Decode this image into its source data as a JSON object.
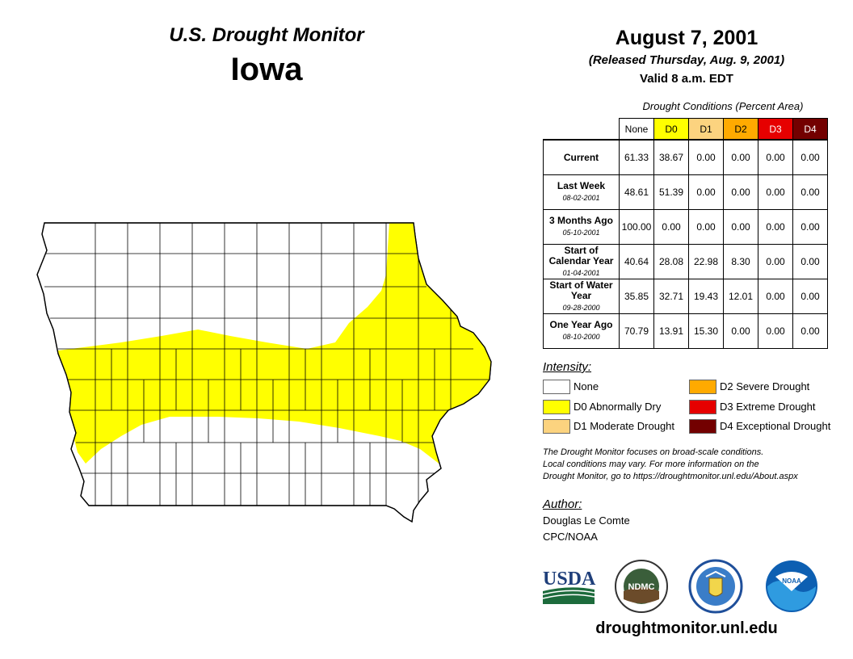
{
  "header": {
    "title": "U.S. Drought Monitor",
    "state": "Iowa",
    "date": "August 7, 2001",
    "released": "(Released Thursday, Aug. 9, 2001)",
    "valid": "Valid 8 a.m. EDT"
  },
  "table": {
    "caption": "Drought Conditions (Percent Area)",
    "columns": [
      {
        "label": "None",
        "color": "#ffffff",
        "text_color": "#000000"
      },
      {
        "label": "D0",
        "color": "#ffff00",
        "text_color": "#000000"
      },
      {
        "label": "D1",
        "color": "#fcd37f",
        "text_color": "#000000"
      },
      {
        "label": "D2",
        "color": "#ffaa00",
        "text_color": "#000000"
      },
      {
        "label": "D3",
        "color": "#e60000",
        "text_color": "#ffffff"
      },
      {
        "label": "D4",
        "color": "#730000",
        "text_color": "#ffffff"
      }
    ],
    "rows": [
      {
        "label": "Current",
        "date": "",
        "values": [
          "61.33",
          "38.67",
          "0.00",
          "0.00",
          "0.00",
          "0.00"
        ]
      },
      {
        "label": "Last Week",
        "date": "08-02-2001",
        "values": [
          "48.61",
          "51.39",
          "0.00",
          "0.00",
          "0.00",
          "0.00"
        ]
      },
      {
        "label": "3 Months Ago",
        "date": "05-10-2001",
        "values": [
          "100.00",
          "0.00",
          "0.00",
          "0.00",
          "0.00",
          "0.00"
        ]
      },
      {
        "label": "Start of Calendar Year",
        "date": "01-04-2001",
        "values": [
          "40.64",
          "28.08",
          "22.98",
          "8.30",
          "0.00",
          "0.00"
        ]
      },
      {
        "label": "Start of Water Year",
        "date": "09-28-2000",
        "values": [
          "35.85",
          "32.71",
          "19.43",
          "12.01",
          "0.00",
          "0.00"
        ]
      },
      {
        "label": "One Year Ago",
        "date": "08-10-2000",
        "values": [
          "70.79",
          "13.91",
          "15.30",
          "0.00",
          "0.00",
          "0.00"
        ]
      }
    ]
  },
  "legend": {
    "title": "Intensity:",
    "items": [
      {
        "label": "None",
        "color": "#ffffff"
      },
      {
        "label": "D0 Abnormally Dry",
        "color": "#ffff00"
      },
      {
        "label": "D1 Moderate Drought",
        "color": "#fcd37f"
      },
      {
        "label": "D2 Severe Drought",
        "color": "#ffaa00"
      },
      {
        "label": "D3 Extreme Drought",
        "color": "#e60000"
      },
      {
        "label": "D4 Exceptional Drought",
        "color": "#730000"
      }
    ]
  },
  "footnote": {
    "line1": "The Drought Monitor focuses on broad-scale conditions.",
    "line2": "Local conditions may vary. For more information on the",
    "line3": "Drought Monitor, go to https://droughtmonitor.unl.edu/About.aspx"
  },
  "author": {
    "label": "Author:",
    "name": "Douglas Le Comte",
    "org": "CPC/NOAA"
  },
  "logos": {
    "usda": "USDA",
    "ndmc": "NDMC",
    "noaa": "NOAA"
  },
  "website": "droughtmonitor.unl.edu"
}
